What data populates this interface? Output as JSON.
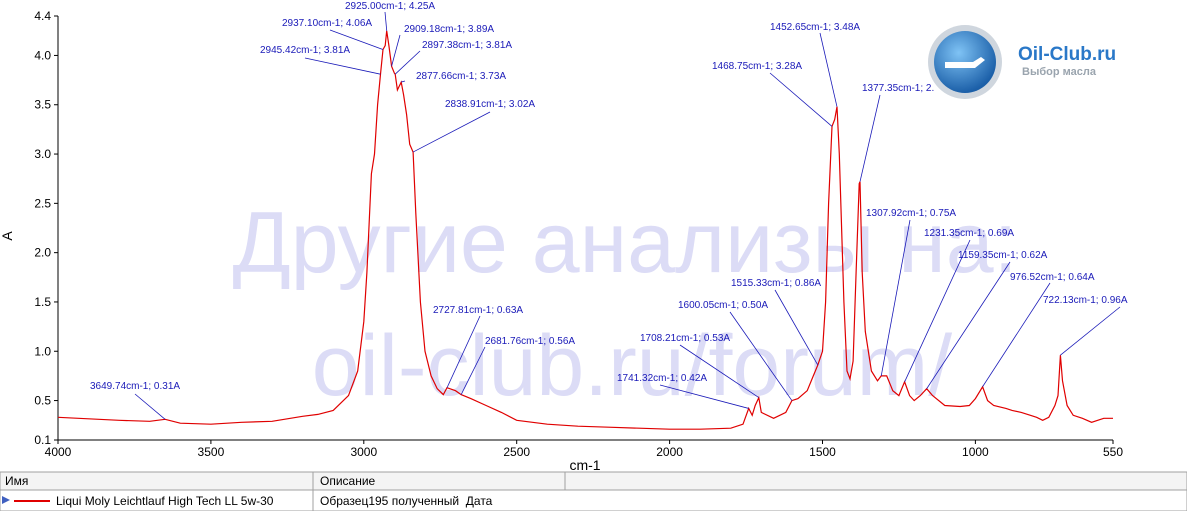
{
  "chart_data": {
    "type": "line",
    "x_label": "cm-1",
    "y_label": "A",
    "xlim": [
      4000,
      550
    ],
    "xticks": [
      4000,
      3500,
      3000,
      2500,
      2000,
      1500,
      1000,
      550
    ],
    "ylim": [
      0.1,
      4.4
    ],
    "yticks": [
      0.1,
      0.5,
      {
        "value": 1,
        "label": "1.0"
      },
      1.5,
      {
        "value": 2,
        "label": "2.0"
      },
      2.5,
      {
        "value": 3,
        "label": "3.0"
      },
      3.5,
      {
        "value": 4,
        "label": "4.0"
      },
      4.4
    ],
    "x": [
      4000,
      3800,
      3700,
      3649.74,
      3600,
      3500,
      3400,
      3300,
      3200,
      3150,
      3100,
      3050,
      3020,
      3000,
      2990,
      2975,
      2965,
      2955,
      2945.42,
      2937.1,
      2930,
      2925,
      2918,
      2909.18,
      2900,
      2897.38,
      2890,
      2877.66,
      2870,
      2860,
      2850,
      2838.91,
      2830,
      2815,
      2800,
      2780,
      2760,
      2740,
      2727.81,
      2700,
      2681.76,
      2650,
      2600,
      2550,
      2500,
      2400,
      2300,
      2200,
      2100,
      2000,
      1900,
      1800,
      1760,
      1741.32,
      1730,
      1720,
      1708.21,
      1700,
      1660,
      1620,
      1600.05,
      1580,
      1550,
      1530,
      1515.33,
      1500,
      1490,
      1480,
      1468.75,
      1460,
      1452.65,
      1445,
      1430,
      1420,
      1410,
      1400,
      1390,
      1380,
      1377.35,
      1370,
      1360,
      1340,
      1320,
      1307.92,
      1290,
      1270,
      1250,
      1231.35,
      1215,
      1200,
      1180,
      1159.35,
      1140,
      1100,
      1050,
      1020,
      1000,
      976.52,
      960,
      940,
      900,
      880,
      850,
      820,
      800,
      780,
      760,
      740,
      730,
      722.13,
      715,
      700,
      680,
      650,
      620,
      600,
      580,
      550
    ],
    "series": [
      {
        "name": "Liqui Moly Leichtlauf High Tech LL 5w-30",
        "color": "#e00000",
        "values": [
          0.33,
          0.3,
          0.29,
          0.31,
          0.27,
          0.26,
          0.28,
          0.29,
          0.34,
          0.36,
          0.4,
          0.55,
          0.8,
          1.3,
          1.8,
          2.8,
          3.0,
          3.5,
          3.81,
          4.06,
          4.1,
          4.25,
          4.1,
          3.89,
          3.82,
          3.81,
          3.65,
          3.73,
          3.6,
          3.4,
          3.1,
          3.02,
          2.4,
          1.5,
          1.0,
          0.75,
          0.62,
          0.56,
          0.63,
          0.6,
          0.56,
          0.52,
          0.45,
          0.38,
          0.3,
          0.26,
          0.24,
          0.23,
          0.22,
          0.21,
          0.21,
          0.22,
          0.26,
          0.42,
          0.35,
          0.45,
          0.53,
          0.38,
          0.32,
          0.38,
          0.5,
          0.52,
          0.6,
          0.75,
          0.86,
          1.0,
          1.5,
          2.5,
          3.28,
          3.35,
          3.48,
          3.0,
          1.5,
          0.8,
          0.72,
          0.9,
          1.8,
          2.7,
          2.72,
          1.8,
          1.2,
          0.8,
          0.7,
          0.75,
          0.75,
          0.6,
          0.55,
          0.69,
          0.55,
          0.5,
          0.55,
          0.62,
          0.55,
          0.45,
          0.44,
          0.45,
          0.52,
          0.64,
          0.5,
          0.45,
          0.42,
          0.4,
          0.38,
          0.35,
          0.33,
          0.3,
          0.33,
          0.45,
          0.55,
          0.96,
          0.7,
          0.45,
          0.35,
          0.32,
          0.28,
          0.3,
          0.32,
          0.32
        ]
      }
    ],
    "annotations": [
      {
        "x": 3649.74,
        "y": 0.31,
        "label": "3649.74cm-1; 0.31A"
      },
      {
        "x": 2945.42,
        "y": 3.81,
        "label": "2945.42cm-1; 3.81A"
      },
      {
        "x": 2937.1,
        "y": 4.06,
        "label": "2937.10cm-1; 4.06A"
      },
      {
        "x": 2925,
        "y": 4.25,
        "label": "2925.00cm-1; 4.25A"
      },
      {
        "x": 2909.18,
        "y": 3.89,
        "label": "2909.18cm-1; 3.89A"
      },
      {
        "x": 2897.38,
        "y": 3.81,
        "label": "2897.38cm-1; 3.81A"
      },
      {
        "x": 2877.66,
        "y": 3.73,
        "label": "2877.66cm-1; 3.73A"
      },
      {
        "x": 2838.91,
        "y": 3.02,
        "label": "2838.91cm-1; 3.02A"
      },
      {
        "x": 2727.81,
        "y": 0.63,
        "label": "2727.81cm-1; 0.63A"
      },
      {
        "x": 2681.76,
        "y": 0.56,
        "label": "2681.76cm-1; 0.56A"
      },
      {
        "x": 1741.32,
        "y": 0.42,
        "label": "1741.32cm-1; 0.42A"
      },
      {
        "x": 1708.21,
        "y": 0.53,
        "label": "1708.21cm-1; 0.53A"
      },
      {
        "x": 1600.05,
        "y": 0.5,
        "label": "1600.05cm-1; 0.50A"
      },
      {
        "x": 1515.33,
        "y": 0.86,
        "label": "1515.33cm-1; 0.86A"
      },
      {
        "x": 1468.75,
        "y": 3.28,
        "label": "1468.75cm-1; 3.28A"
      },
      {
        "x": 1452.65,
        "y": 3.48,
        "label": "1452.65cm-1; 3.48A"
      },
      {
        "x": 1377.35,
        "y": 2.72,
        "label": "1377.35cm-1; 2."
      },
      {
        "x": 1307.92,
        "y": 0.75,
        "label": "1307.92cm-1; 0.75A"
      },
      {
        "x": 1231.35,
        "y": 0.69,
        "label": "1231.35cm-1; 0.69A"
      },
      {
        "x": 1159.35,
        "y": 0.62,
        "label": "1159.35cm-1; 0.62A"
      },
      {
        "x": 976.52,
        "y": 0.64,
        "label": "976.52cm-1; 0.64A"
      },
      {
        "x": 722.13,
        "y": 0.96,
        "label": "722.13cm-1; 0.96A"
      }
    ],
    "watermark": [
      "Другие анализы на:",
      "oil-club.ru/forum/"
    ]
  },
  "logo": {
    "title": "Oil-Club.ru",
    "subtitle": "Выбор масла"
  },
  "table": {
    "headers": [
      "Имя",
      "Описание"
    ],
    "description": "Образец195 полученный  Дата"
  }
}
